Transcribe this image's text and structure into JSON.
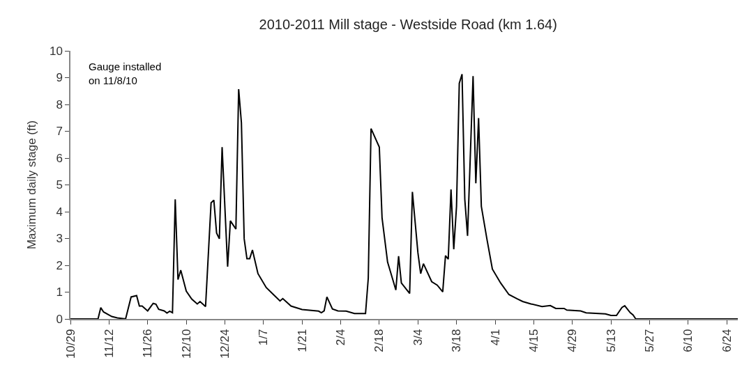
{
  "chart_data": {
    "type": "line",
    "title": "2010-2011 Mill stage - Westside Road (km 1.64)",
    "ylabel": "Maximum daily stage (ft)",
    "annotations": [
      "Gauge installed\non 11/8/10"
    ],
    "x": [
      "2010-10-29",
      "2010-11-08",
      "2010-11-09",
      "2010-11-10",
      "2010-11-13",
      "2010-11-15",
      "2010-11-18",
      "2010-11-20",
      "2010-11-22",
      "2010-11-23",
      "2010-11-24",
      "2010-11-26",
      "2010-11-28",
      "2010-11-29",
      "2010-11-30",
      "2010-12-02",
      "2010-12-03",
      "2010-12-04",
      "2010-12-05",
      "2010-12-06",
      "2010-12-07",
      "2010-12-08",
      "2010-12-10",
      "2010-12-12",
      "2010-12-14",
      "2010-12-15",
      "2010-12-17",
      "2010-12-19",
      "2010-12-20",
      "2010-12-21",
      "2010-12-22",
      "2010-12-23",
      "2010-12-25",
      "2010-12-26",
      "2010-12-28",
      "2010-12-29",
      "2010-12-30",
      "2010-12-31",
      "2011-01-01",
      "2011-01-02",
      "2011-01-03",
      "2011-01-05",
      "2011-01-08",
      "2011-01-11",
      "2011-01-13",
      "2011-01-14",
      "2011-01-17",
      "2011-01-21",
      "2011-01-27",
      "2011-01-28",
      "2011-01-29",
      "2011-01-30",
      "2011-02-01",
      "2011-02-03",
      "2011-02-06",
      "2011-02-09",
      "2011-02-13",
      "2011-02-14",
      "2011-02-15",
      "2011-02-18",
      "2011-02-19",
      "2011-02-21",
      "2011-02-23",
      "2011-02-24",
      "2011-02-25",
      "2011-02-26",
      "2011-03-01",
      "2011-03-02",
      "2011-03-04",
      "2011-03-05",
      "2011-03-06",
      "2011-03-09",
      "2011-03-11",
      "2011-03-13",
      "2011-03-14",
      "2011-03-15",
      "2011-03-16",
      "2011-03-17",
      "2011-03-18",
      "2011-03-19",
      "2011-03-20",
      "2011-03-21",
      "2011-03-22",
      "2011-03-24",
      "2011-03-25",
      "2011-03-26",
      "2011-03-27",
      "2011-03-29",
      "2011-03-31",
      "2011-04-03",
      "2011-04-06",
      "2011-04-09",
      "2011-04-11",
      "2011-04-14",
      "2011-04-18",
      "2011-04-21",
      "2011-04-23",
      "2011-04-26",
      "2011-04-27",
      "2011-05-02",
      "2011-05-04",
      "2011-05-11",
      "2011-05-13",
      "2011-05-15",
      "2011-05-17",
      "2011-05-18",
      "2011-05-20",
      "2011-05-21",
      "2011-05-22",
      "2011-06-28"
    ],
    "series": [
      {
        "color": "#000000",
        "values": [
          0,
          0,
          0.42,
          0.26,
          0.09,
          0.04,
          0,
          0.82,
          0.87,
          0.48,
          0.48,
          0.3,
          0.58,
          0.55,
          0.36,
          0.3,
          0.22,
          0.29,
          0.23,
          4.46,
          1.47,
          1.82,
          1.04,
          0.74,
          0.56,
          0.65,
          0.46,
          4.33,
          4.43,
          3.2,
          2.99,
          6.41,
          1.95,
          3.66,
          3.35,
          8.57,
          7.32,
          2.99,
          2.25,
          2.25,
          2.57,
          1.69,
          1.17,
          0.87,
          0.67,
          0.76,
          0.48,
          0.35,
          0.29,
          0.23,
          0.3,
          0.82,
          0.37,
          0.3,
          0.29,
          0.2,
          0.2,
          1.52,
          7.1,
          6.41,
          3.77,
          2.12,
          1.43,
          1.08,
          2.34,
          1.34,
          0.95,
          4.74,
          2.47,
          1.69,
          2.06,
          1.39,
          1.26,
          1.01,
          2.36,
          2.23,
          4.83,
          2.6,
          4.2,
          8.79,
          9.13,
          4.46,
          3.1,
          9.06,
          5.06,
          7.49,
          4.2,
          2.99,
          1.86,
          1.34,
          0.91,
          0.75,
          0.65,
          0.56,
          0.46,
          0.5,
          0.39,
          0.39,
          0.33,
          0.3,
          0.23,
          0.19,
          0.13,
          0.13,
          0.43,
          0.49,
          0.23,
          0.15,
          0,
          0
        ]
      }
    ],
    "xlim": [
      "2010-10-29",
      "2011-06-28"
    ],
    "xticks": [
      {
        "value": "2010-10-29",
        "label": "10/29"
      },
      {
        "value": "2010-11-12",
        "label": "11/12"
      },
      {
        "value": "2010-11-26",
        "label": "11/26"
      },
      {
        "value": "2010-12-10",
        "label": "12/10"
      },
      {
        "value": "2010-12-24",
        "label": "12/24"
      },
      {
        "value": "2011-01-07",
        "label": "1/7"
      },
      {
        "value": "2011-01-21",
        "label": "1/21"
      },
      {
        "value": "2011-02-04",
        "label": "2/4"
      },
      {
        "value": "2011-02-18",
        "label": "2/18"
      },
      {
        "value": "2011-03-04",
        "label": "3/4"
      },
      {
        "value": "2011-03-18",
        "label": "3/18"
      },
      {
        "value": "2011-04-01",
        "label": "4/1"
      },
      {
        "value": "2011-04-15",
        "label": "4/15"
      },
      {
        "value": "2011-04-29",
        "label": "4/29"
      },
      {
        "value": "2011-05-13",
        "label": "5/13"
      },
      {
        "value": "2011-05-27",
        "label": "5/27"
      },
      {
        "value": "2011-06-10",
        "label": "6/10"
      },
      {
        "value": "2011-06-24",
        "label": "6/24"
      }
    ],
    "ylim": [
      0,
      10
    ],
    "yticks": [
      0,
      1,
      2,
      3,
      4,
      5,
      6,
      7,
      8,
      9,
      10
    ],
    "marker": "none",
    "line_style": "solid"
  }
}
